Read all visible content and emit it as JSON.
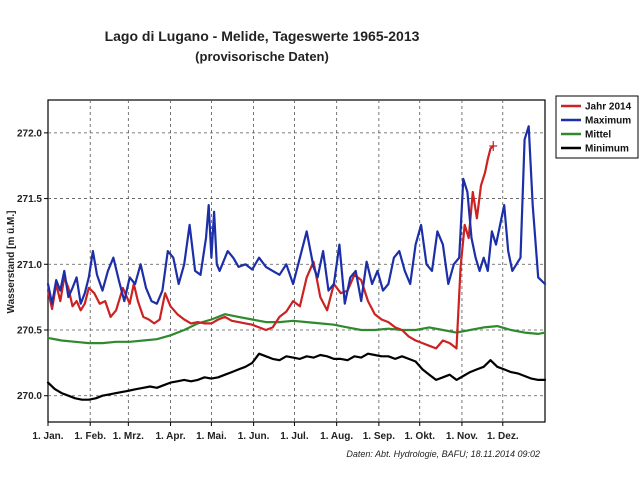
{
  "chart_data": {
    "type": "line",
    "title": "Lago di Lugano - Melide, Tageswerte 1965-2013",
    "subtitle": "(provisorische Daten)",
    "ylabel": "Wasserstand [m ü.M.]",
    "xlabel": "",
    "source": "Daten: Abt. Hydrologie, BAFU; 18.11.2014 09:02",
    "ylim": [
      269.8,
      272.25
    ],
    "xlim": [
      0,
      365
    ],
    "yticks": [
      "270.0",
      "270.5",
      "271.0",
      "271.5",
      "272.0"
    ],
    "ytick_values": [
      270.0,
      270.5,
      271.0,
      271.5,
      272.0
    ],
    "xticks": [
      "1. Jan.",
      "1. Feb.",
      "1. Mrz.",
      "1. Apr.",
      "1. Mai.",
      "1. Jun.",
      "1. Jul.",
      "1. Aug.",
      "1. Sep.",
      "1. Okt.",
      "1. Nov.",
      "1. Dez."
    ],
    "xtick_values": [
      0,
      31,
      59,
      90,
      120,
      151,
      181,
      212,
      243,
      273,
      304,
      334
    ],
    "grid": true,
    "legend_position": "top-right",
    "series": [
      {
        "name": "Jahr 2014",
        "color": "#cc2222",
        "x": [
          0,
          3,
          6,
          9,
          12,
          15,
          18,
          21,
          24,
          27,
          30,
          34,
          38,
          42,
          46,
          50,
          55,
          60,
          63,
          66,
          70,
          74,
          78,
          82,
          86,
          90,
          95,
          100,
          105,
          110,
          115,
          120,
          125,
          130,
          135,
          140,
          145,
          150,
          155,
          160,
          165,
          170,
          175,
          180,
          185,
          190,
          195,
          200,
          205,
          210,
          215,
          220,
          225,
          230,
          235,
          240,
          245,
          250,
          255,
          260,
          265,
          270,
          275,
          280,
          285,
          290,
          295,
          300,
          303,
          306,
          309,
          312,
          315,
          318,
          321,
          323,
          325,
          327
        ],
        "y": [
          270.8,
          270.66,
          270.85,
          270.72,
          270.9,
          270.82,
          270.68,
          270.72,
          270.65,
          270.7,
          270.82,
          270.78,
          270.7,
          270.72,
          270.6,
          270.65,
          270.82,
          270.7,
          270.85,
          270.72,
          270.6,
          270.58,
          270.55,
          270.58,
          270.78,
          270.68,
          270.62,
          270.58,
          270.55,
          270.56,
          270.55,
          270.55,
          270.58,
          270.6,
          270.57,
          270.56,
          270.55,
          270.54,
          270.52,
          270.5,
          270.52,
          270.6,
          270.64,
          270.72,
          270.68,
          270.9,
          271.02,
          270.75,
          270.65,
          270.85,
          270.78,
          270.8,
          270.92,
          270.88,
          270.72,
          270.62,
          270.58,
          270.56,
          270.52,
          270.5,
          270.45,
          270.42,
          270.4,
          270.38,
          270.36,
          270.42,
          270.4,
          270.36,
          270.98,
          271.3,
          271.2,
          271.55,
          271.35,
          271.6,
          271.7,
          271.8,
          271.88,
          271.9
        ]
      },
      {
        "name": "Maximum",
        "color": "#1d2fa8",
        "x": [
          0,
          3,
          6,
          9,
          12,
          15,
          18,
          21,
          24,
          27,
          30,
          33,
          36,
          40,
          44,
          48,
          52,
          56,
          60,
          64,
          68,
          72,
          76,
          80,
          84,
          88,
          92,
          96,
          100,
          104,
          108,
          112,
          116,
          118,
          120,
          122,
          124,
          126,
          128,
          132,
          136,
          140,
          145,
          150,
          155,
          160,
          165,
          170,
          175,
          180,
          185,
          190,
          195,
          198,
          202,
          206,
          210,
          214,
          218,
          222,
          226,
          230,
          234,
          238,
          242,
          246,
          250,
          254,
          258,
          262,
          266,
          270,
          274,
          278,
          282,
          286,
          290,
          294,
          298,
          302,
          305,
          308,
          311,
          314,
          317,
          320,
          323,
          326,
          329,
          332,
          335,
          338,
          341,
          344,
          347,
          350,
          353,
          356,
          360,
          365
        ],
        "y": [
          270.85,
          270.7,
          270.88,
          270.8,
          270.95,
          270.75,
          270.82,
          270.9,
          270.7,
          270.78,
          270.9,
          271.1,
          270.92,
          270.8,
          270.95,
          271.05,
          270.88,
          270.72,
          270.9,
          270.85,
          271.0,
          270.82,
          270.72,
          270.7,
          270.8,
          271.1,
          271.05,
          270.85,
          271.0,
          271.3,
          270.95,
          270.92,
          271.2,
          271.45,
          271.05,
          271.4,
          271.0,
          270.95,
          271.0,
          271.1,
          271.05,
          270.98,
          271.0,
          270.96,
          271.05,
          270.98,
          270.95,
          270.92,
          271.0,
          270.85,
          271.05,
          271.25,
          270.98,
          270.9,
          271.1,
          270.8,
          270.85,
          271.15,
          270.7,
          270.9,
          270.95,
          270.72,
          271.02,
          270.85,
          270.95,
          270.8,
          270.85,
          271.05,
          271.1,
          270.95,
          270.85,
          271.15,
          271.3,
          271.0,
          270.95,
          271.25,
          271.15,
          270.85,
          271.0,
          271.05,
          271.65,
          271.55,
          271.2,
          271.05,
          270.95,
          271.05,
          270.95,
          271.25,
          271.15,
          271.3,
          271.45,
          271.1,
          270.95,
          271.0,
          271.05,
          271.95,
          272.05,
          271.45,
          270.9,
          270.85
        ]
      },
      {
        "name": "Mittel",
        "color": "#2f8a2f",
        "x": [
          0,
          10,
          20,
          30,
          40,
          50,
          60,
          70,
          80,
          90,
          100,
          110,
          120,
          130,
          140,
          150,
          160,
          170,
          180,
          190,
          200,
          210,
          220,
          230,
          240,
          250,
          260,
          270,
          280,
          290,
          300,
          310,
          320,
          330,
          340,
          350,
          360,
          365
        ],
        "y": [
          270.44,
          270.42,
          270.41,
          270.4,
          270.4,
          270.41,
          270.41,
          270.42,
          270.43,
          270.46,
          270.5,
          270.55,
          270.58,
          270.62,
          270.6,
          270.58,
          270.56,
          270.56,
          270.57,
          270.56,
          270.55,
          270.54,
          270.52,
          270.5,
          270.5,
          270.51,
          270.5,
          270.5,
          270.52,
          270.5,
          270.48,
          270.5,
          270.52,
          270.53,
          270.5,
          270.48,
          270.47,
          270.48
        ]
      },
      {
        "name": "Minimum",
        "color": "#000000",
        "x": [
          0,
          5,
          10,
          15,
          20,
          25,
          30,
          35,
          40,
          45,
          50,
          55,
          60,
          65,
          70,
          75,
          80,
          85,
          90,
          95,
          100,
          105,
          110,
          115,
          120,
          125,
          130,
          135,
          140,
          145,
          150,
          155,
          160,
          165,
          170,
          175,
          180,
          185,
          190,
          195,
          200,
          205,
          210,
          215,
          220,
          225,
          230,
          235,
          240,
          245,
          250,
          255,
          260,
          265,
          270,
          275,
          280,
          285,
          290,
          295,
          300,
          305,
          310,
          315,
          320,
          325,
          330,
          335,
          340,
          345,
          350,
          355,
          360,
          365
        ],
        "y": [
          270.1,
          270.05,
          270.02,
          270.0,
          269.98,
          269.97,
          269.97,
          269.98,
          270.0,
          270.01,
          270.02,
          270.03,
          270.04,
          270.05,
          270.06,
          270.07,
          270.06,
          270.08,
          270.1,
          270.11,
          270.12,
          270.11,
          270.12,
          270.14,
          270.13,
          270.14,
          270.16,
          270.18,
          270.2,
          270.22,
          270.25,
          270.32,
          270.3,
          270.28,
          270.27,
          270.3,
          270.29,
          270.28,
          270.3,
          270.29,
          270.31,
          270.3,
          270.28,
          270.28,
          270.27,
          270.3,
          270.29,
          270.32,
          270.31,
          270.3,
          270.3,
          270.28,
          270.3,
          270.28,
          270.26,
          270.2,
          270.16,
          270.12,
          270.14,
          270.16,
          270.12,
          270.15,
          270.18,
          270.2,
          270.22,
          270.27,
          270.22,
          270.2,
          270.18,
          270.17,
          270.15,
          270.13,
          270.12,
          270.12
        ]
      }
    ]
  }
}
